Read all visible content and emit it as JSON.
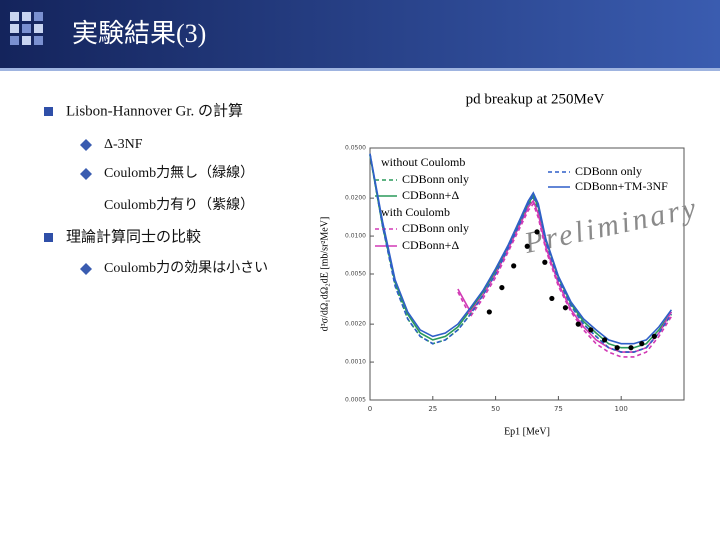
{
  "slide": {
    "title": "実験結果(3)",
    "bullets": [
      {
        "text": "Lisbon-Hannover Gr. の計算",
        "sub": [
          "Δ-3NF",
          "Coulomb力無し（緑線）"
        ],
        "continuation": "Coulomb力有り（紫線）"
      },
      {
        "text": "理論計算同士の比較",
        "sub": [
          "Coulomb力の効果は小さい"
        ]
      }
    ]
  },
  "chart_data": {
    "type": "line",
    "title": "pd breakup at 250MeV",
    "xlabel": "Ep1 [MeV]",
    "ylabel": "d³σ/dΩ₁dΩ₂dE [mb/sr²MeV]",
    "annotation": "Preliminary",
    "legend_headers": [
      "without Coulomb",
      "with Coulomb"
    ],
    "log_y": true,
    "xlim": [
      0,
      125
    ],
    "xticks": [
      0,
      25,
      50,
      75,
      100
    ],
    "ylim": [
      0.0005,
      0.05
    ],
    "yticks": [
      {
        "value": 0.0005,
        "label": "0.0005"
      },
      {
        "value": 0.001,
        "label": "0.0010"
      },
      {
        "value": 0.002,
        "label": "0.0020"
      },
      {
        "value": 0.005,
        "label": "0.0050"
      },
      {
        "value": 0.01,
        "label": "0.0100"
      },
      {
        "value": 0.02,
        "label": "0.0200"
      },
      {
        "value": 0.05,
        "label": "0.0500"
      }
    ],
    "x": [
      0,
      5,
      10,
      15,
      20,
      25,
      30,
      35,
      40,
      45,
      50,
      55,
      60,
      63,
      65,
      67,
      70,
      75,
      80,
      85,
      90,
      95,
      100,
      105,
      110,
      115,
      120
    ],
    "series": [
      {
        "name": "CDBonn only",
        "color": "#2a9a5a",
        "dashed": true,
        "values": [
          0.044,
          0.012,
          0.0041,
          0.0022,
          0.0016,
          0.0014,
          0.0015,
          0.0018,
          0.0024,
          0.0034,
          0.005,
          0.008,
          0.013,
          0.017,
          0.02,
          0.016,
          0.009,
          0.0045,
          0.0028,
          0.002,
          0.0016,
          0.0013,
          0.0012,
          0.0012,
          0.0013,
          0.0017,
          0.0024
        ]
      },
      {
        "name": "CDBonn+Δ",
        "color": "#2a9a5a",
        "dashed": false,
        "values": [
          0.044,
          0.012,
          0.0043,
          0.0024,
          0.0017,
          0.0015,
          0.0016,
          0.0019,
          0.0026,
          0.0036,
          0.0053,
          0.0083,
          0.0135,
          0.018,
          0.021,
          0.017,
          0.0093,
          0.0047,
          0.0029,
          0.0021,
          0.0017,
          0.0014,
          0.0013,
          0.0013,
          0.0014,
          0.0018,
          0.0025
        ]
      },
      {
        "name": "CDBonn only",
        "color": "#d23ab5",
        "dashed": true,
        "values": [
          null,
          null,
          null,
          null,
          null,
          null,
          null,
          0.0036,
          0.0023,
          0.0032,
          0.0047,
          0.0075,
          0.012,
          0.016,
          0.018,
          0.014,
          0.0078,
          0.004,
          0.0025,
          0.0018,
          0.0014,
          0.0012,
          0.0011,
          0.0011,
          0.0012,
          0.0016,
          0.0023
        ]
      },
      {
        "name": "CDBonn+Δ",
        "color": "#d23ab5",
        "dashed": false,
        "values": [
          null,
          null,
          null,
          null,
          null,
          null,
          null,
          0.0038,
          0.0025,
          0.0034,
          0.005,
          0.0079,
          0.0127,
          0.017,
          0.019,
          0.015,
          0.0082,
          0.0042,
          0.0026,
          0.0019,
          0.0015,
          0.0013,
          0.0012,
          0.0012,
          0.0013,
          0.0017,
          0.0025
        ]
      },
      {
        "name": "CDBonn only",
        "color": "#2f5fc8",
        "dashed": true,
        "values": [
          0.045,
          0.012,
          0.004,
          0.0022,
          0.0016,
          0.0014,
          0.0015,
          0.0018,
          0.0024,
          0.0034,
          0.005,
          0.008,
          0.013,
          0.018,
          0.021,
          0.017,
          0.009,
          0.0045,
          0.0028,
          0.002,
          0.0016,
          0.0013,
          0.0012,
          0.0012,
          0.0013,
          0.0017,
          0.0024
        ]
      },
      {
        "name": "CDBonn+TM-3NF",
        "color": "#2f5fc8",
        "dashed": false,
        "values": [
          0.045,
          0.013,
          0.0045,
          0.0025,
          0.0018,
          0.0016,
          0.0017,
          0.002,
          0.0027,
          0.0037,
          0.0055,
          0.0085,
          0.014,
          0.019,
          0.022,
          0.018,
          0.0095,
          0.0048,
          0.003,
          0.0022,
          0.0018,
          0.0015,
          0.0014,
          0.0014,
          0.0015,
          0.0019,
          0.0026
        ]
      }
    ],
    "points": {
      "color": "#000000",
      "x": [
        47.5,
        52.5,
        57.2,
        62.6,
        66.5,
        69.6,
        72.4,
        77.8,
        82.9,
        87.9,
        93.4,
        98.4,
        103.9,
        108.2,
        113.2
      ],
      "values": [
        0.0025,
        0.0039,
        0.0058,
        0.0083,
        0.0108,
        0.0062,
        0.0032,
        0.0027,
        0.002,
        0.0018,
        0.0015,
        0.0013,
        0.0013,
        0.0014,
        0.0016
      ]
    }
  }
}
